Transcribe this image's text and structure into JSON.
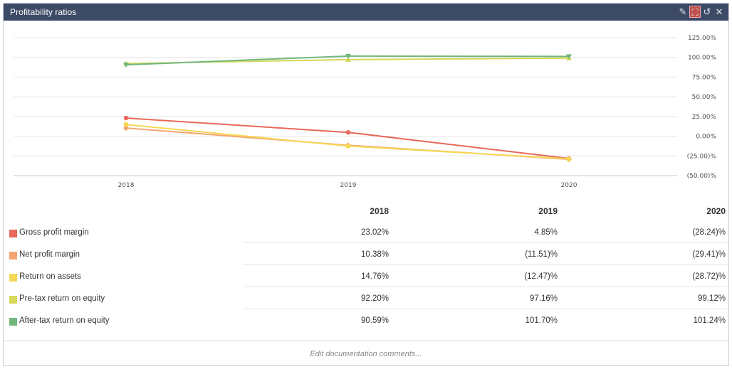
{
  "header": {
    "title": "Profitability ratios"
  },
  "controls": {
    "edit_icon": "pencil-icon",
    "expand_icon": "expand-icon",
    "undo_icon": "undo-icon",
    "close_icon": "close-icon",
    "edit_glyph": "✎",
    "expand_glyph": "⛶",
    "undo_glyph": "↺",
    "close_glyph": "✕"
  },
  "colors": {
    "titlebar": "#3d4a66",
    "gross": "#e8685a",
    "net": "#f4a470",
    "roa": "#f5d855",
    "pretax": "#d5d85a",
    "aftertax": "#72b77c"
  },
  "chart_data": {
    "type": "line",
    "x": [
      "2018",
      "2019",
      "2020"
    ],
    "ylim": [
      -50,
      125
    ],
    "yticks": [
      125,
      100,
      75,
      50,
      25,
      0,
      -25,
      -50
    ],
    "ytick_labels": [
      "125.00%",
      "100.00%",
      "75.00%",
      "50.00%",
      "25.00%",
      "0.00%",
      "(25.00)%",
      "(50.00)%"
    ],
    "series": [
      {
        "name": "Gross profit margin",
        "values": [
          23.02,
          4.85,
          -28.24
        ],
        "color": "#e8685a",
        "marker": "circle"
      },
      {
        "name": "Net profit margin",
        "values": [
          10.38,
          -11.51,
          -29.41
        ],
        "color": "#f4a470",
        "marker": "diamond"
      },
      {
        "name": "Return on assets",
        "values": [
          14.76,
          -12.47,
          -28.72
        ],
        "color": "#f5d855",
        "marker": "square"
      },
      {
        "name": "Pre-tax return on equity",
        "values": [
          92.2,
          97.16,
          99.12
        ],
        "color": "#d5d85a",
        "marker": "triangle-up"
      },
      {
        "name": "After-tax return on equity",
        "values": [
          90.59,
          101.7,
          101.24
        ],
        "color": "#72b77c",
        "marker": "triangle-down"
      }
    ]
  },
  "table": {
    "columns": [
      "2018",
      "2019",
      "2020"
    ],
    "rows": [
      {
        "label": "Gross profit margin",
        "values": [
          "23.02%",
          "4.85%",
          "(28.24)%"
        ]
      },
      {
        "label": "Net profit margin",
        "values": [
          "10.38%",
          "(11.51)%",
          "(29.41)%"
        ]
      },
      {
        "label": "Return on assets",
        "values": [
          "14.76%",
          "(12.47)%",
          "(28.72)%"
        ]
      },
      {
        "label": "Pre-tax return on equity",
        "values": [
          "92.20%",
          "97.16%",
          "99.12%"
        ]
      },
      {
        "label": "After-tax return on equity",
        "values": [
          "90.59%",
          "101.70%",
          "101.24%"
        ]
      }
    ]
  },
  "footer": {
    "placeholder": "Edit documentation comments..."
  }
}
